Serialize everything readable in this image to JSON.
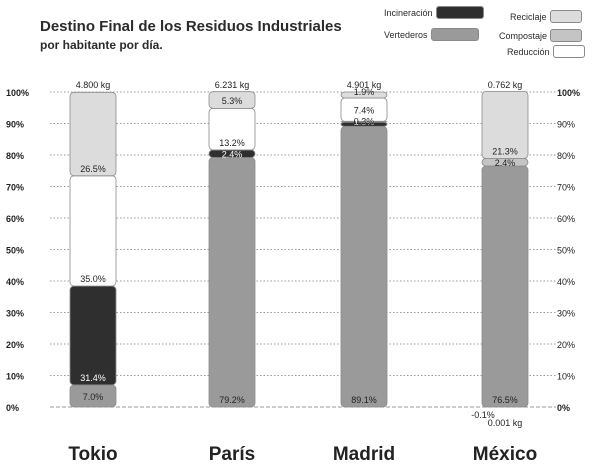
{
  "title": "Destino Final de los Residuos Industriales",
  "subtitle": "por habitante por día.",
  "legend": [
    {
      "key": "incineracion",
      "label": "Incineración",
      "color": "#2f2f2f"
    },
    {
      "key": "vertederos",
      "label": "Vertederos",
      "color": "#9a9a9a"
    },
    {
      "key": "reciclaje",
      "label": "Reciclaje",
      "color": "#dcdcdc"
    },
    {
      "key": "compostaje",
      "label": "Compostaje",
      "color": "#c4c4c4"
    },
    {
      "key": "reduccion",
      "label": "Reducción",
      "color": "#ffffff"
    }
  ],
  "chart_data": {
    "type": "bar",
    "stacked": true,
    "title": "Destino Final de los Residuos Industriales",
    "subtitle": "por habitante por día.",
    "categories": [
      "Tokio",
      "París",
      "Madrid",
      "México"
    ],
    "totals": [
      "4.800 kg",
      "6.231 kg",
      "4.901 kg",
      "0.762 kg"
    ],
    "bottom_notes": [
      null,
      null,
      null,
      "0.001 kg"
    ],
    "ylim": [
      0,
      100
    ],
    "y_ticks": [
      "0%",
      "10%",
      "20%",
      "30%",
      "40%",
      "50%",
      "60%",
      "70%",
      "80%",
      "90%",
      "100%"
    ],
    "y_ticks_right": [
      "0%",
      "10%",
      "20%",
      "30%",
      "40%",
      "50%",
      "60%",
      "70%",
      "80%",
      "90%",
      "100%"
    ],
    "series": [
      {
        "name": "Vertederos",
        "color": "#9a9a9a",
        "values": [
          7.0,
          79.2,
          89.1,
          76.5
        ],
        "labels": [
          "7.0%",
          "79.2%",
          "89.1%",
          "76.5%"
        ]
      },
      {
        "name": "Incineración",
        "color": "#2f2f2f",
        "values": [
          31.4,
          2.4,
          1.3,
          -0.1
        ],
        "labels": [
          "31.4%",
          "2.4%",
          "1.3%",
          "-0.1%"
        ]
      },
      {
        "name": "Compostaje",
        "color": "#c4c4c4",
        "values": [
          0,
          0,
          0.3,
          2.4
        ],
        "labels": [
          "",
          "",
          "0.3%",
          "2.4%"
        ]
      },
      {
        "name": "Reducción",
        "color": "#ffffff",
        "values": [
          35.0,
          13.2,
          7.4,
          0
        ],
        "labels": [
          "35.0%",
          "13.2%",
          "7.4%",
          ""
        ]
      },
      {
        "name": "Reciclaje",
        "color": "#dcdcdc",
        "values": [
          26.5,
          5.3,
          1.9,
          21.3
        ],
        "labels": [
          "26.5%",
          "5.3%",
          "1.9%",
          "21.3%"
        ]
      }
    ],
    "grid": true,
    "legend_position": "top-right"
  }
}
